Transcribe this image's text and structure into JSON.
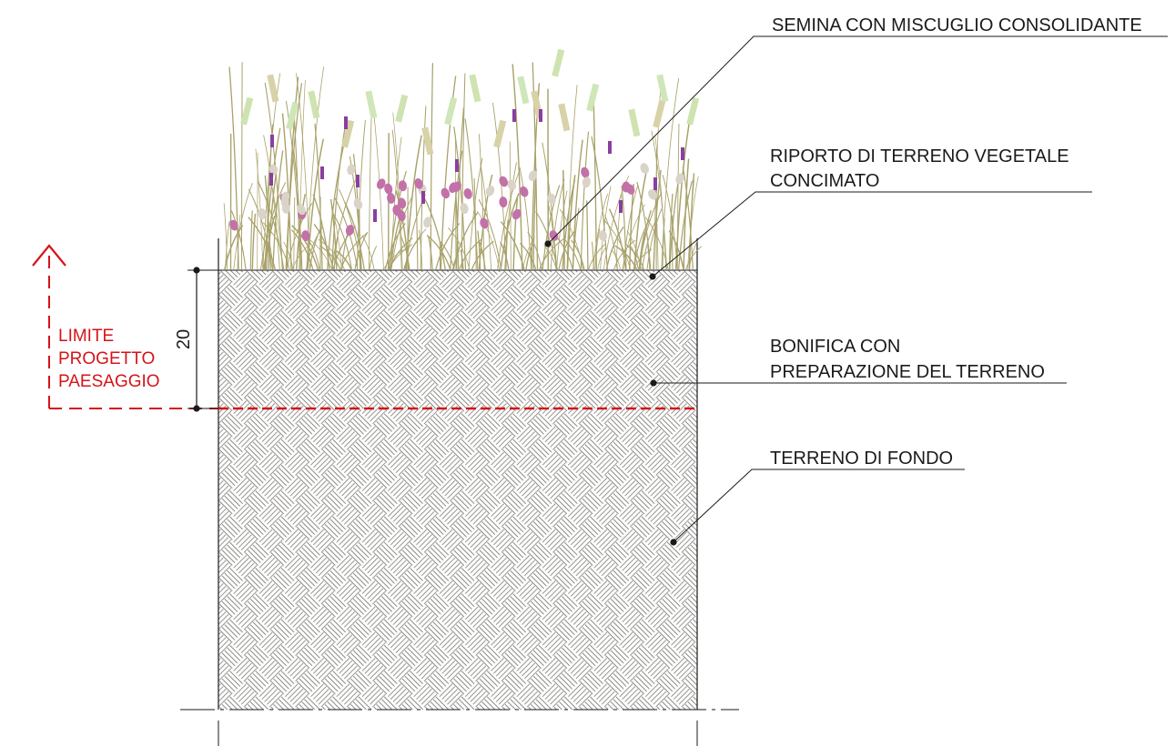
{
  "labels": {
    "seeding": "SEMINA CON MISCUGLIO CONSOLIDANTE",
    "topsoil_line1": "RIPORTO DI TERRENO VEGETALE",
    "topsoil_line2": "CONCIMATO",
    "reclamation_line1": "BONIFICA CON",
    "reclamation_line2": "PREPARAZIONE DEL TERRENO",
    "subsoil": "TERRENO DI FONDO"
  },
  "limit": {
    "line1": "LIMITE",
    "line2": "PROGETTO",
    "line3": "PAESAGGIO"
  },
  "dimension": {
    "value": "20"
  },
  "colors": {
    "ink": "#1a1a1a",
    "limit_red": "#d4141a",
    "hatch": "#8c8a84",
    "grass": "#a8a26a",
    "grass_light": "#cfe3b0",
    "flower_pink": "#c272a8",
    "flower_beige": "#d9d3c8",
    "flower_purple": "#8a3fa0"
  }
}
